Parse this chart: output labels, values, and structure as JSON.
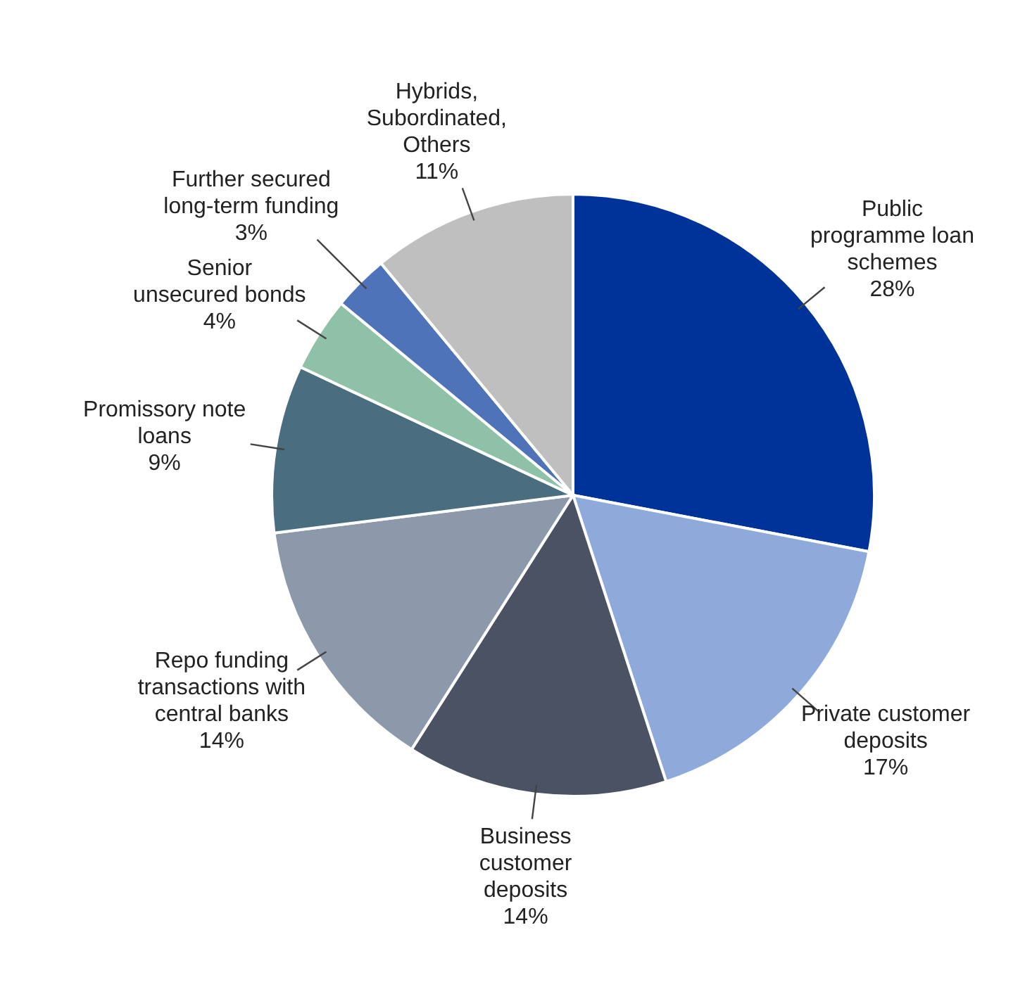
{
  "chart_data": {
    "type": "pie",
    "categories": [
      "Public programme loan schemes",
      "Private customer deposits",
      "Business customer deposits",
      "Repo funding transactions with central banks",
      "Promissory note loans",
      "Senior unsecured bonds",
      "Further secured long-term funding",
      "Hybrids, Subordinated, Others"
    ],
    "values": [
      28,
      17,
      14,
      14,
      9,
      4,
      3,
      11
    ],
    "value_labels": [
      "28%",
      "17%",
      "14%",
      "14%",
      "9%",
      "4%",
      "3%",
      "11%"
    ],
    "colors": [
      "#003399",
      "#8eaadb",
      "#4a5263",
      "#8c99ab",
      "#4a6e80",
      "#8fc1a9",
      "#4f73b8",
      "#bfbfbf"
    ],
    "legend": false
  }
}
